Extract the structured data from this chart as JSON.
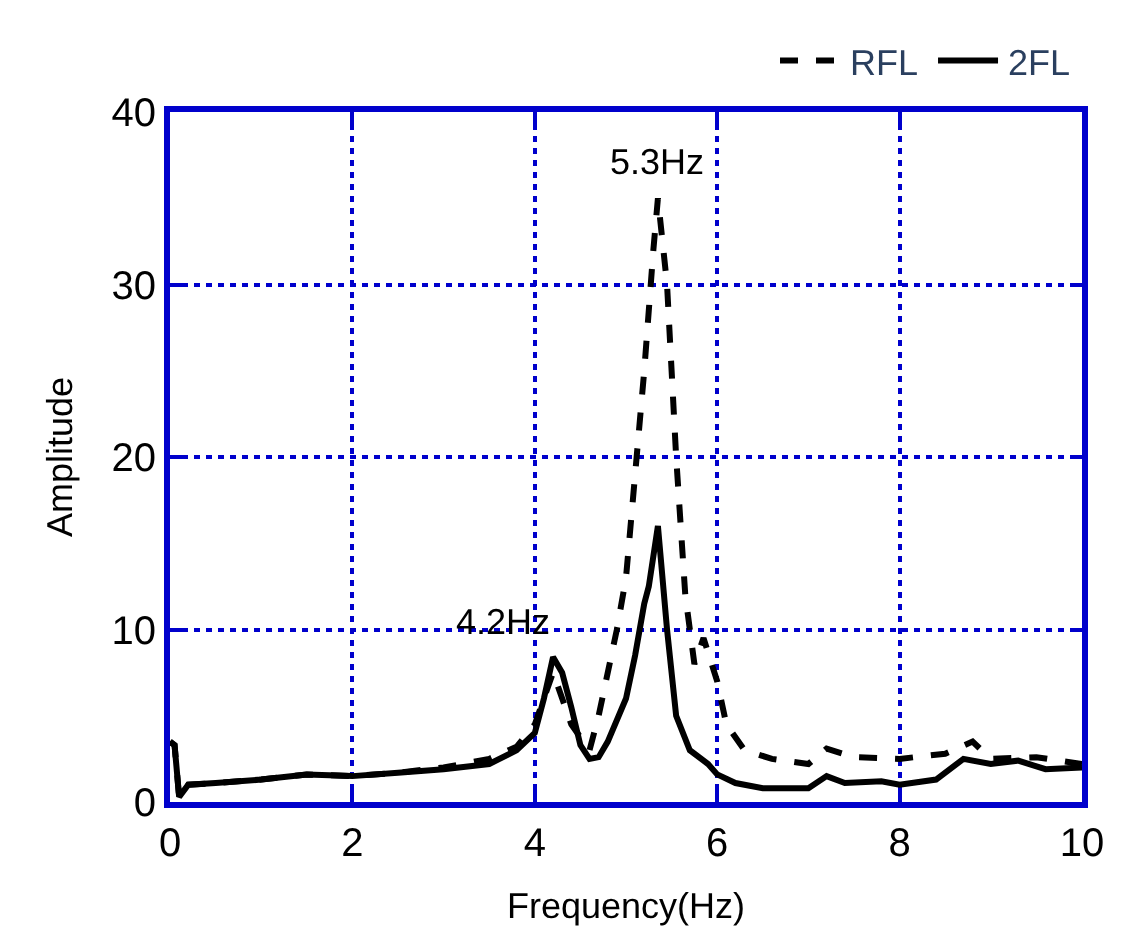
{
  "chart_data": {
    "type": "line",
    "xlabel": "Frequency(Hz)",
    "ylabel": "Amplitude",
    "xlim": [
      0,
      10
    ],
    "ylim": [
      0,
      40
    ],
    "xticks": [
      0,
      2,
      4,
      6,
      8,
      10
    ],
    "yticks": [
      0,
      10,
      20,
      30,
      40
    ],
    "grid": true,
    "legend": "top right",
    "annotations": [
      {
        "text": "5.3Hz",
        "x": 5.35,
        "y": 35
      },
      {
        "text": "4.2Hz",
        "x": 4.2,
        "y": 8.4
      }
    ],
    "series": [
      {
        "name": "RFL",
        "color": "#000000",
        "line_style": "dashed",
        "x": [
          0,
          0.05,
          0.1,
          0.2,
          0.5,
          1,
          1.5,
          2,
          2.5,
          3,
          3.5,
          3.8,
          4.0,
          4.2,
          4.4,
          4.6,
          4.7,
          4.9,
          5.0,
          5.1,
          5.2,
          5.3,
          5.35,
          5.45,
          5.55,
          5.65,
          5.75,
          5.85,
          6.0,
          6.1,
          6.3,
          6.6,
          7.0,
          7.2,
          7.5,
          8.0,
          8.5,
          8.8,
          9.0,
          9.5,
          10
        ],
        "values": [
          3.5,
          3.3,
          0.3,
          1.0,
          1.1,
          1.3,
          1.6,
          1.5,
          1.7,
          2.0,
          2.5,
          3.2,
          4.5,
          7.5,
          4.5,
          3.0,
          5.0,
          10,
          13,
          19,
          25,
          32,
          35,
          30,
          20,
          12,
          8,
          9.5,
          7,
          4.5,
          3.0,
          2.5,
          2.2,
          3.1,
          2.6,
          2.5,
          2.8,
          3.5,
          2.5,
          2.6,
          2.2
        ]
      },
      {
        "name": "2FL",
        "color": "#000000",
        "line_style": "solid",
        "x": [
          0,
          0.05,
          0.1,
          0.2,
          0.5,
          1,
          1.5,
          2,
          2.5,
          3,
          3.5,
          3.8,
          4.0,
          4.1,
          4.2,
          4.3,
          4.4,
          4.5,
          4.6,
          4.7,
          4.8,
          5.0,
          5.1,
          5.2,
          5.25,
          5.35,
          5.45,
          5.55,
          5.7,
          5.9,
          6.0,
          6.2,
          6.5,
          7.0,
          7.2,
          7.4,
          7.8,
          8.0,
          8.4,
          8.7,
          9.0,
          9.3,
          9.6,
          10
        ],
        "values": [
          3.5,
          3.3,
          0.3,
          1.0,
          1.1,
          1.3,
          1.6,
          1.5,
          1.7,
          1.9,
          2.2,
          3.0,
          4.0,
          6.0,
          8.4,
          7.5,
          5.5,
          3.3,
          2.5,
          2.6,
          3.5,
          6.0,
          8.5,
          11.5,
          12.5,
          16,
          10,
          5,
          3,
          2.2,
          1.6,
          1.1,
          0.8,
          0.8,
          1.5,
          1.1,
          1.2,
          1.0,
          1.3,
          2.5,
          2.2,
          2.4,
          1.9,
          2.0
        ]
      }
    ]
  }
}
